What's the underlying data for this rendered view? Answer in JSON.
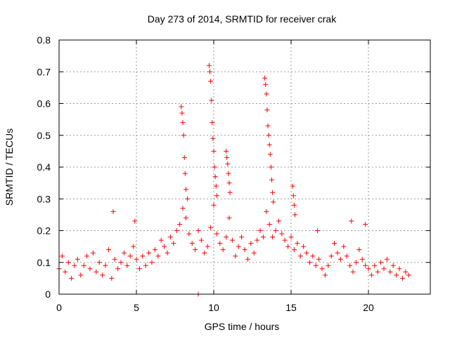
{
  "chart_data": {
    "type": "scatter",
    "title": "Day 273 of 2014, SRMTID for receiver crak",
    "xlabel": "GPS time / hours",
    "ylabel": "SRMTID / TECUs",
    "xlim": [
      0,
      24
    ],
    "ylim": [
      0,
      0.8
    ],
    "x_ticks": [
      0,
      5,
      10,
      15,
      20
    ],
    "x_tick_labels": [
      "0",
      "5",
      "10",
      "15",
      "20"
    ],
    "y_ticks": [
      0,
      0.1,
      0.2,
      0.3,
      0.4,
      0.5,
      0.6,
      0.7,
      0.8
    ],
    "y_tick_labels": [
      "0",
      "0.1",
      "0.2",
      "0.3",
      "0.4",
      "0.5",
      "0.6",
      "0.7",
      "0.8"
    ],
    "grid": true,
    "marker": "+",
    "color": "#ff0000",
    "series": [
      {
        "name": "SRMTID",
        "points": [
          [
            0.0,
            0.08
          ],
          [
            0.2,
            0.12
          ],
          [
            0.4,
            0.07
          ],
          [
            0.6,
            0.1
          ],
          [
            0.8,
            0.05
          ],
          [
            1.0,
            0.09
          ],
          [
            1.2,
            0.11
          ],
          [
            1.4,
            0.06
          ],
          [
            1.6,
            0.09
          ],
          [
            1.8,
            0.12
          ],
          [
            2.0,
            0.08
          ],
          [
            2.2,
            0.13
          ],
          [
            2.4,
            0.07
          ],
          [
            2.6,
            0.1
          ],
          [
            2.8,
            0.06
          ],
          [
            3.0,
            0.09
          ],
          [
            3.2,
            0.14
          ],
          [
            3.4,
            0.05
          ],
          [
            3.6,
            0.11
          ],
          [
            3.8,
            0.08
          ],
          [
            4.0,
            0.1
          ],
          [
            4.2,
            0.13
          ],
          [
            4.4,
            0.09
          ],
          [
            4.6,
            0.12
          ],
          [
            4.8,
            0.15
          ],
          [
            5.0,
            0.11
          ],
          [
            5.2,
            0.08
          ],
          [
            5.4,
            0.12
          ],
          [
            5.6,
            0.09
          ],
          [
            5.8,
            0.13
          ],
          [
            6.0,
            0.1
          ],
          [
            6.2,
            0.14
          ],
          [
            6.4,
            0.12
          ],
          [
            6.6,
            0.17
          ],
          [
            6.8,
            0.15
          ],
          [
            7.0,
            0.13
          ],
          [
            7.2,
            0.18
          ],
          [
            7.4,
            0.16
          ],
          [
            7.6,
            0.2
          ],
          [
            7.8,
            0.22
          ],
          [
            8.0,
            0.27
          ],
          [
            8.2,
            0.24
          ],
          [
            8.4,
            0.19
          ],
          [
            8.6,
            0.16
          ],
          [
            8.8,
            0.14
          ],
          [
            9.0,
            0.2
          ],
          [
            9.2,
            0.17
          ],
          [
            9.4,
            0.13
          ],
          [
            9.6,
            0.15
          ],
          [
            9.8,
            0.21
          ],
          [
            10.0,
            0.28
          ],
          [
            10.2,
            0.19
          ],
          [
            10.4,
            0.16
          ],
          [
            10.6,
            0.14
          ],
          [
            10.8,
            0.18
          ],
          [
            11.0,
            0.24
          ],
          [
            11.2,
            0.17
          ],
          [
            11.4,
            0.12
          ],
          [
            11.6,
            0.15
          ],
          [
            11.8,
            0.18
          ],
          [
            12.0,
            0.14
          ],
          [
            12.2,
            0.11
          ],
          [
            12.4,
            0.16
          ],
          [
            12.6,
            0.13
          ],
          [
            12.8,
            0.17
          ],
          [
            13.0,
            0.2
          ],
          [
            13.2,
            0.18
          ],
          [
            13.4,
            0.26
          ],
          [
            13.6,
            0.22
          ],
          [
            13.8,
            0.18
          ],
          [
            14.0,
            0.2
          ],
          [
            14.2,
            0.23
          ],
          [
            14.4,
            0.19
          ],
          [
            14.6,
            0.17
          ],
          [
            14.8,
            0.15
          ],
          [
            15.0,
            0.18
          ],
          [
            15.2,
            0.14
          ],
          [
            15.4,
            0.16
          ],
          [
            15.6,
            0.12
          ],
          [
            15.8,
            0.15
          ],
          [
            16.0,
            0.13
          ],
          [
            16.2,
            0.1
          ],
          [
            16.4,
            0.12
          ],
          [
            16.6,
            0.09
          ],
          [
            16.8,
            0.11
          ],
          [
            17.0,
            0.08
          ],
          [
            17.2,
            0.06
          ],
          [
            17.4,
            0.09
          ],
          [
            17.6,
            0.12
          ],
          [
            17.8,
            0.16
          ],
          [
            18.0,
            0.13
          ],
          [
            18.2,
            0.11
          ],
          [
            18.4,
            0.15
          ],
          [
            18.6,
            0.12
          ],
          [
            18.8,
            0.09
          ],
          [
            19.0,
            0.07
          ],
          [
            19.2,
            0.1
          ],
          [
            19.4,
            0.14
          ],
          [
            19.6,
            0.11
          ],
          [
            19.8,
            0.09
          ],
          [
            20.0,
            0.08
          ],
          [
            20.2,
            0.06
          ],
          [
            20.4,
            0.09
          ],
          [
            20.6,
            0.07
          ],
          [
            20.8,
            0.1
          ],
          [
            21.0,
            0.08
          ],
          [
            21.2,
            0.11
          ],
          [
            21.4,
            0.07
          ],
          [
            21.6,
            0.09
          ],
          [
            21.8,
            0.06
          ],
          [
            22.0,
            0.08
          ],
          [
            22.2,
            0.05
          ],
          [
            22.4,
            0.07
          ],
          [
            22.6,
            0.06
          ],
          [
            7.9,
            0.59
          ],
          [
            7.95,
            0.57
          ],
          [
            8.0,
            0.54
          ],
          [
            8.05,
            0.5
          ],
          [
            8.1,
            0.43
          ],
          [
            8.15,
            0.38
          ],
          [
            8.2,
            0.33
          ],
          [
            8.3,
            0.3
          ],
          [
            9.7,
            0.72
          ],
          [
            9.75,
            0.7
          ],
          [
            9.8,
            0.67
          ],
          [
            9.85,
            0.61
          ],
          [
            9.9,
            0.54
          ],
          [
            9.95,
            0.49
          ],
          [
            10.0,
            0.45
          ],
          [
            10.05,
            0.4
          ],
          [
            10.1,
            0.37
          ],
          [
            10.15,
            0.34
          ],
          [
            10.2,
            0.31
          ],
          [
            10.8,
            0.45
          ],
          [
            10.85,
            0.43
          ],
          [
            10.9,
            0.41
          ],
          [
            10.95,
            0.38
          ],
          [
            11.0,
            0.35
          ],
          [
            11.05,
            0.32
          ],
          [
            13.3,
            0.68
          ],
          [
            13.35,
            0.66
          ],
          [
            13.4,
            0.63
          ],
          [
            13.45,
            0.58
          ],
          [
            13.5,
            0.53
          ],
          [
            13.55,
            0.5
          ],
          [
            13.6,
            0.47
          ],
          [
            13.65,
            0.44
          ],
          [
            13.7,
            0.4
          ],
          [
            13.75,
            0.36
          ],
          [
            13.8,
            0.32
          ],
          [
            13.85,
            0.29
          ],
          [
            3.5,
            0.26
          ],
          [
            4.9,
            0.23
          ],
          [
            15.1,
            0.34
          ],
          [
            15.15,
            0.31
          ],
          [
            15.2,
            0.28
          ],
          [
            15.25,
            0.25
          ],
          [
            16.7,
            0.2
          ],
          [
            18.9,
            0.23
          ],
          [
            19.8,
            0.22
          ],
          [
            9.0,
            0.0
          ]
        ]
      }
    ]
  }
}
